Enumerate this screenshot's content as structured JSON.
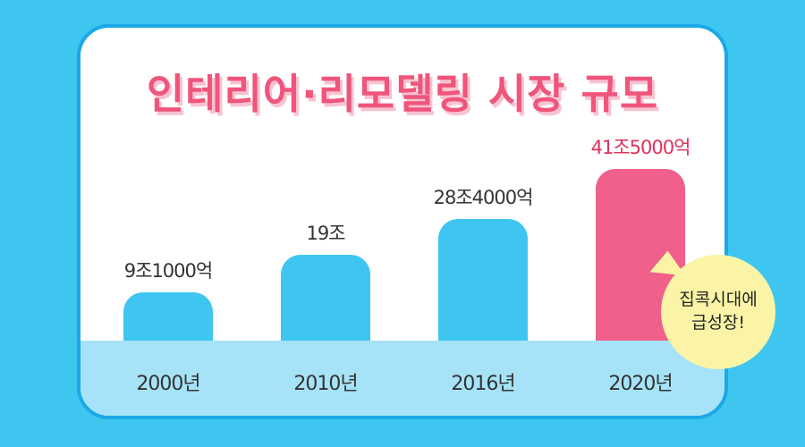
{
  "chart_data": {
    "type": "bar",
    "title": "인테리어·리모델링 시장 규모",
    "categories": [
      "2000년",
      "2010년",
      "2016년",
      "2020년"
    ],
    "values": [
      9.1,
      19,
      28.4,
      41.5
    ],
    "value_labels": [
      "9조1000억",
      "19조",
      "28조4000억",
      "41조5000억"
    ],
    "highlight_index": 3,
    "ylim": [
      0,
      41.5
    ],
    "grid": false
  },
  "annotation": {
    "line1": "집콕시대에",
    "line2": "급성장!"
  },
  "colors": {
    "background": "#3ec6f1",
    "bar": "#3ec6f1",
    "highlight_bar": "#f0608a",
    "highlight_label": "#e0315d",
    "title": "#f0557c",
    "baseline_band": "#a6e3f8",
    "bubble": "#fbf4a6"
  }
}
